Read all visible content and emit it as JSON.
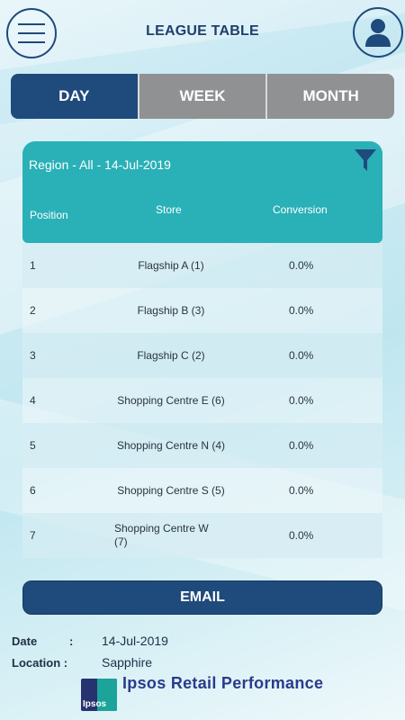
{
  "header": {
    "title": "LEAGUE TABLE",
    "menu_icon": "hamburger-icon",
    "profile_icon": "user-icon"
  },
  "tabs": [
    {
      "label": "DAY",
      "active": true
    },
    {
      "label": "WEEK",
      "active": false
    },
    {
      "label": "MONTH",
      "active": false
    }
  ],
  "table": {
    "region_label": "Region - All - 14-Jul-2019",
    "filter_icon": "filter-icon",
    "columns": {
      "position": "Position",
      "store": "Store",
      "conversion": "Conversion"
    },
    "rows": [
      {
        "position": "1",
        "store": "Flagship A (1)",
        "conversion": "0.0%"
      },
      {
        "position": "2",
        "store": "Flagship B (3)",
        "conversion": "0.0%"
      },
      {
        "position": "3",
        "store": "Flagship C (2)",
        "conversion": "0.0%"
      },
      {
        "position": "4",
        "store": "Shopping Centre E (6)",
        "conversion": "0.0%"
      },
      {
        "position": "5",
        "store": "Shopping Centre N (4)",
        "conversion": "0.0%"
      },
      {
        "position": "6",
        "store": "Shopping Centre S (5)",
        "conversion": "0.0%"
      },
      {
        "position": "7",
        "store": "Shopping Centre W (7)",
        "conversion": "0.0%"
      }
    ]
  },
  "email_button": "EMAIL",
  "info": {
    "date_label": "Date",
    "date_value": "14-Jul-2019",
    "location_label": "Location :",
    "location_value": "Sapphire",
    "colon": ":"
  },
  "brand": {
    "logo_text": "Ipsos",
    "name": "Ipsos Retail Performance"
  },
  "colors": {
    "primary": "#1f4a7c",
    "teal": "#2ab0b7",
    "tab_inactive": "#8f9193"
  }
}
